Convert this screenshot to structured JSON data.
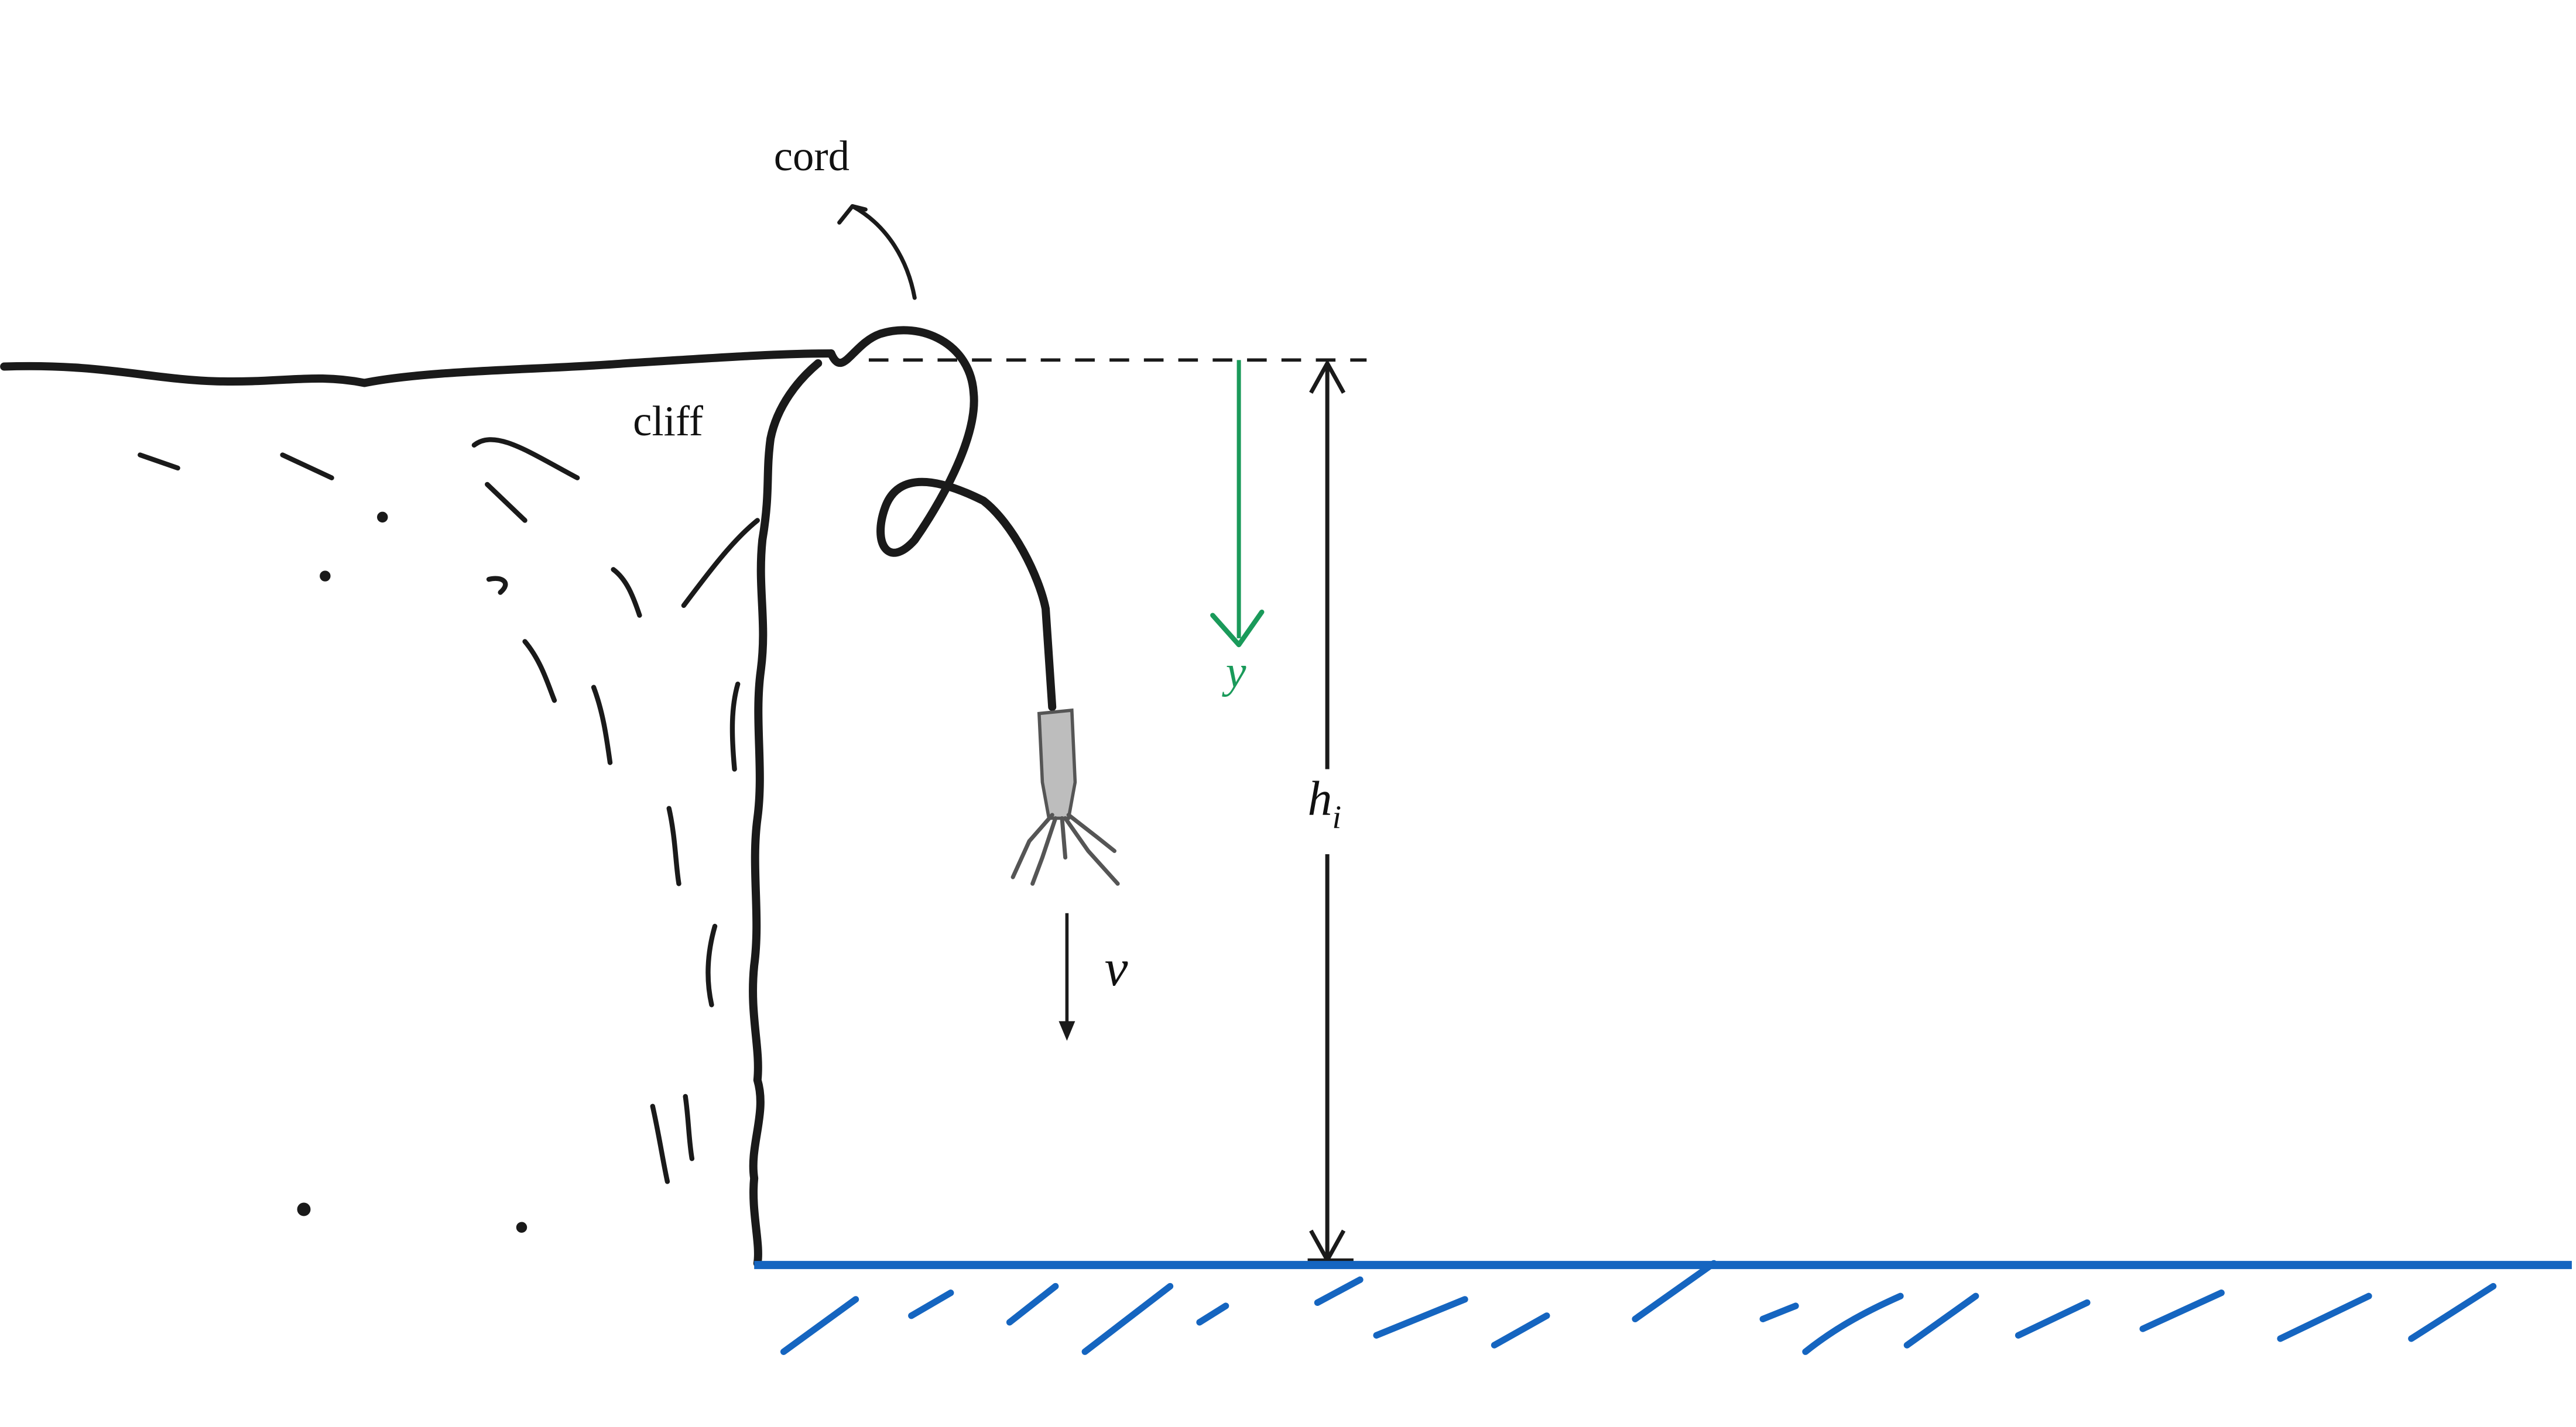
{
  "labels": {
    "cord": "cord",
    "cliff": "cliff",
    "y": "y",
    "h": "h",
    "h_sub": "i",
    "v": "v"
  },
  "colors": {
    "ink": "#1a1a1a",
    "y_axis": "#1a9a5a",
    "ground": "#1565c0",
    "jumper": "#bdbdbd"
  }
}
